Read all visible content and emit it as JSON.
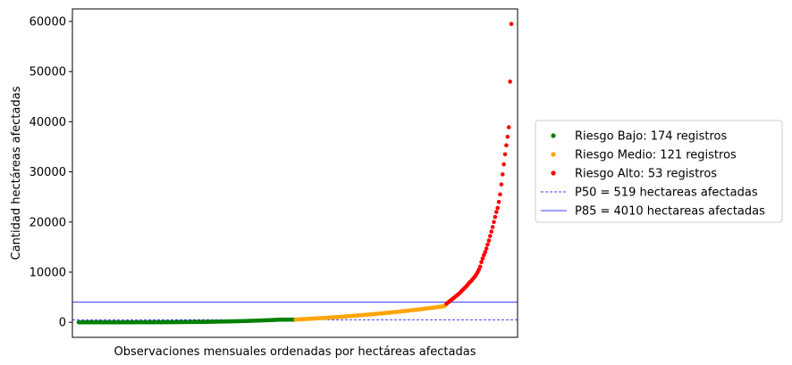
{
  "chart_data": {
    "type": "scatter",
    "title": "",
    "xlabel": "Observaciones mensuales ordenadas por hectáreas afectadas",
    "ylabel": "Cantidad hectáreas afectadas",
    "xlim": [
      -5,
      352
    ],
    "ylim": [
      -3000,
      62500
    ],
    "yticks": [
      0,
      10000,
      20000,
      30000,
      40000,
      50000,
      60000
    ],
    "ytick_labels": [
      "0",
      "10000",
      "20000",
      "30000",
      "40000",
      "50000",
      "60000"
    ],
    "x_ticks_visible": false,
    "grid": false,
    "legend_position": "outside-right",
    "series": [
      {
        "name": "Riesgo Bajo: 174 registros",
        "color": "#008000",
        "marker": "point",
        "x_start": 0,
        "values": [
          0,
          0,
          0,
          0,
          0,
          0,
          0,
          0,
          0,
          0,
          0,
          0,
          0,
          0,
          0,
          0,
          0,
          0,
          0,
          0,
          0,
          0,
          0,
          0,
          0,
          0,
          0,
          0,
          0,
          0,
          0,
          0,
          0,
          0,
          0,
          0,
          0,
          0,
          0,
          0,
          1,
          1,
          1,
          1,
          1,
          2,
          2,
          2,
          3,
          3,
          3,
          4,
          4,
          5,
          5,
          5,
          6,
          6,
          7,
          8,
          8,
          9,
          10,
          10,
          11,
          12,
          13,
          14,
          15,
          16,
          17,
          18,
          19,
          20,
          22,
          23,
          24,
          26,
          27,
          29,
          30,
          32,
          34,
          36,
          38,
          40,
          42,
          44,
          46,
          49,
          51,
          54,
          56,
          59,
          62,
          64,
          67,
          70,
          73,
          76,
          80,
          83,
          86,
          90,
          94,
          97,
          101,
          105,
          109,
          113,
          118,
          122,
          127,
          131,
          136,
          141,
          146,
          151,
          156,
          161,
          167,
          172,
          178,
          184,
          190,
          196,
          202,
          209,
          215,
          222,
          229,
          236,
          243,
          250,
          258,
          265,
          273,
          281,
          289,
          297,
          305,
          314,
          322,
          331,
          340,
          349,
          358,
          367,
          377,
          387,
          396,
          406,
          416,
          427,
          437,
          448,
          458,
          469,
          480,
          491,
          503,
          514,
          520,
          521,
          522,
          523,
          524,
          525,
          526,
          527,
          528,
          529,
          530,
          531
        ]
      },
      {
        "name": "Riesgo Medio: 121 registros",
        "color": "#ffa500",
        "marker": "point",
        "x_start": 174,
        "values": [
          540,
          553,
          566,
          579,
          593,
          606,
          620,
          634,
          648,
          662,
          676,
          691,
          705,
          720,
          734,
          749,
          764,
          779,
          795,
          810,
          826,
          842,
          857,
          873,
          889,
          906,
          922,
          939,
          955,
          972,
          989,
          1006,
          1024,
          1041,
          1059,
          1077,
          1095,
          1113,
          1131,
          1149,
          1168,
          1187,
          1206,
          1225,
          1244,
          1264,
          1283,
          1303,
          1323,
          1343,
          1363,
          1384,
          1404,
          1425,
          1446,
          1467,
          1488,
          1510,
          1531,
          1553,
          1575,
          1597,
          1619,
          1642,
          1665,
          1687,
          1710,
          1734,
          1757,
          1780,
          1804,
          1828,
          1852,
          1876,
          1901,
          1926,
          1950,
          1975,
          2001,
          2026,
          2051,
          2077,
          2103,
          2129,
          2155,
          2182,
          2209,
          2235,
          2262,
          2290,
          2317,
          2345,
          2373,
          2401,
          2429,
          2457,
          2486,
          2514,
          2543,
          2573,
          2602,
          2632,
          2661,
          2691,
          2721,
          2752,
          2782,
          2813,
          2844,
          2875,
          2907,
          2938,
          2970,
          3002,
          3034,
          3067,
          3099,
          3132,
          3165,
          3198,
          3400
        ]
      },
      {
        "name": "Riesgo Alto: 53 registros",
        "color": "#ff0000",
        "marker": "point",
        "x_start": 295,
        "values": [
          3700,
          3900,
          4100,
          4300,
          4500,
          4700,
          4900,
          5100,
          5300,
          5500,
          5700,
          5950,
          6200,
          6450,
          6700,
          6950,
          7200,
          7500,
          7800,
          8050,
          8300,
          8600,
          8900,
          9200,
          9600,
          10000,
          10500,
          11100,
          12000,
          12700,
          13400,
          14000,
          14700,
          15500,
          16300,
          17200,
          18100,
          19000,
          20000,
          21000,
          22000,
          22800,
          24000,
          25500,
          27500,
          29500,
          31500,
          33500,
          35300,
          37000,
          38900,
          48000,
          59500
        ]
      }
    ],
    "reference_lines": [
      {
        "name": "P50 = 519 hectareas afectadas",
        "y": 519,
        "style": "dashed",
        "color": "#0000ff"
      },
      {
        "name": "P85 = 4010 hectareas afectadas",
        "y": 4010,
        "style": "solid",
        "color": "#0000ff"
      }
    ]
  }
}
